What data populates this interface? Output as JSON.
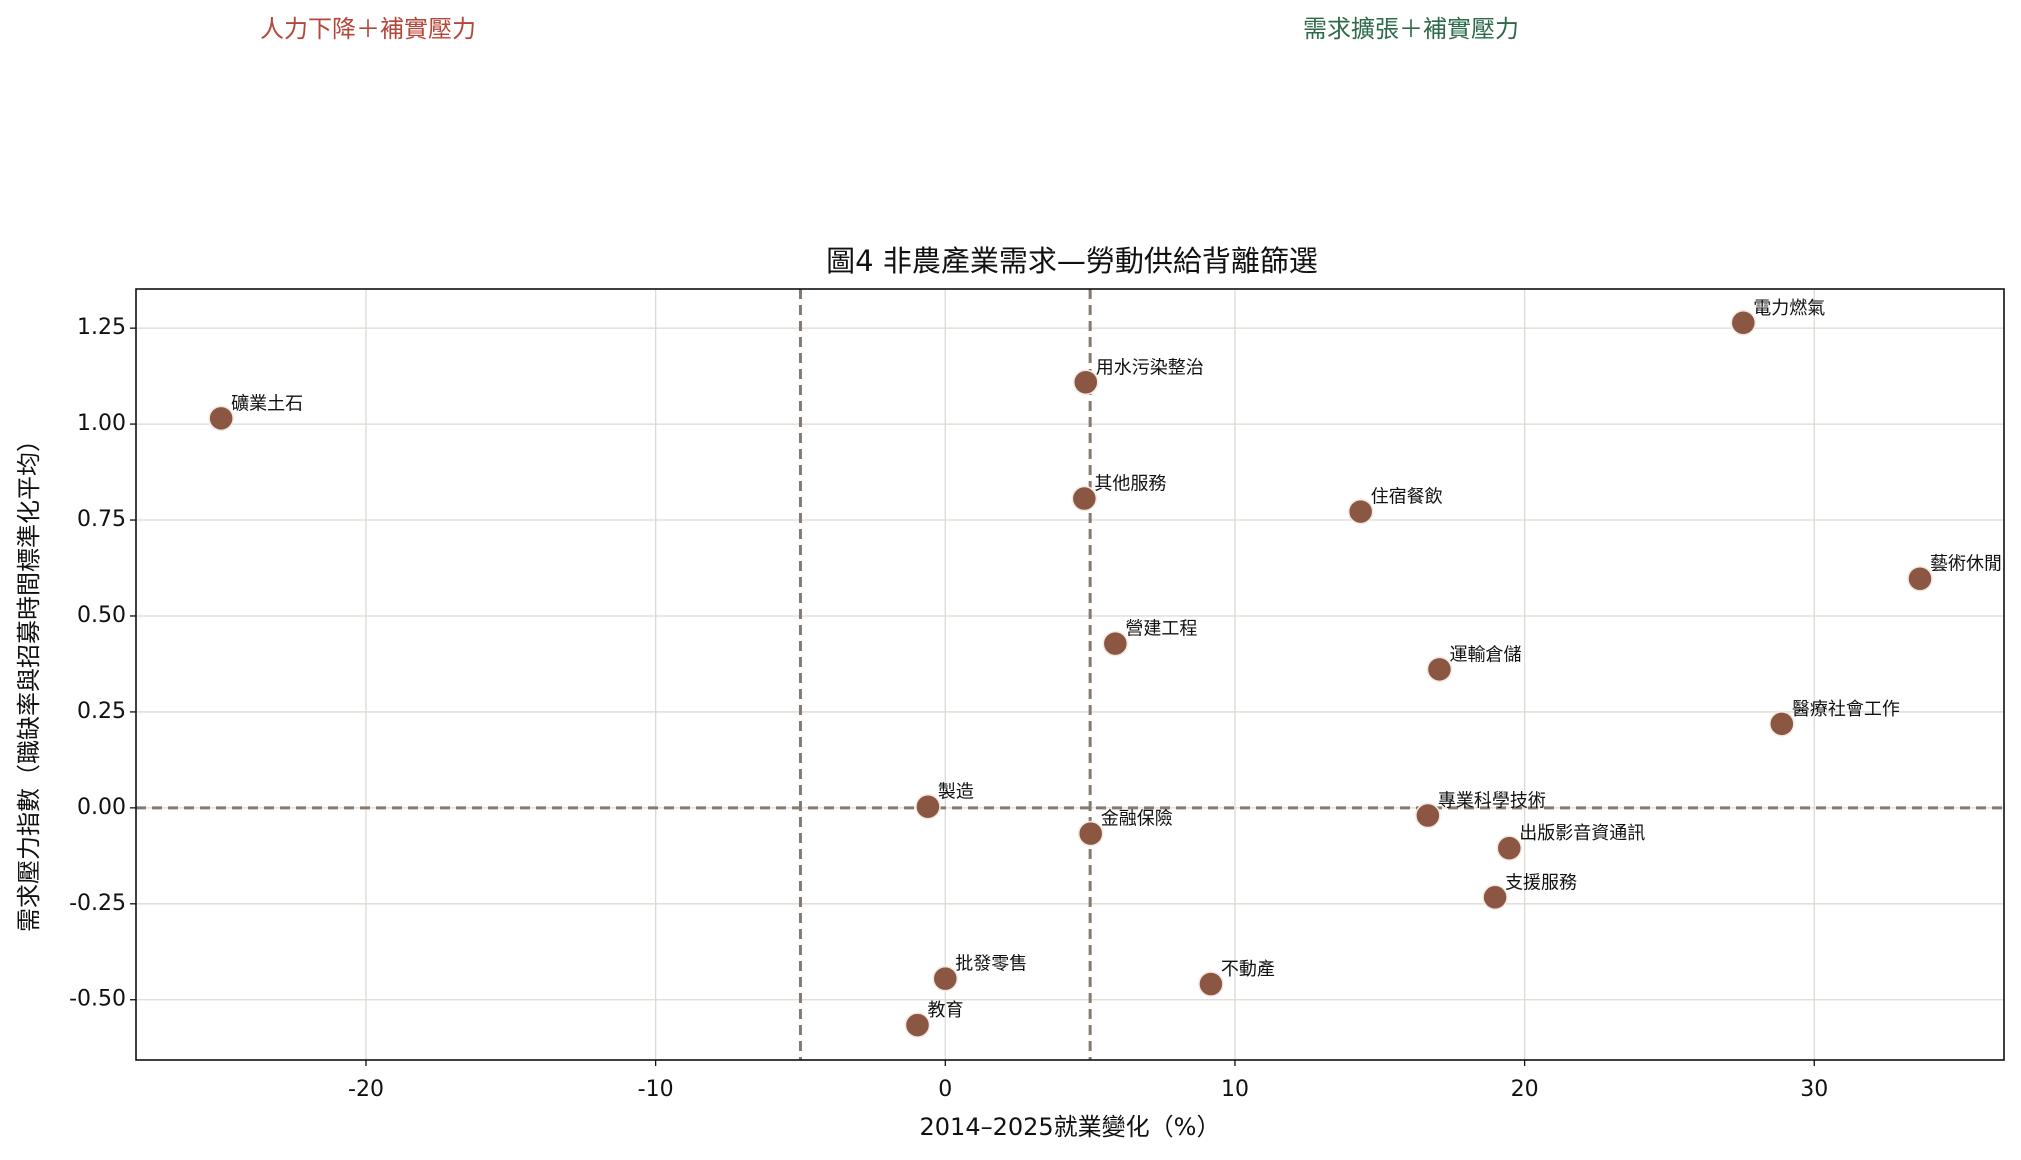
{
  "chart_data": {
    "type": "scatter",
    "title": "圖4 非農產業需求—勞動供給背離篩選",
    "xlabel": "2014–2025就業變化（%）",
    "ylabel": "需求壓力指數（職缺率與招募時間標準化平均）",
    "annotations": [
      {
        "text": "人力下降＋補實壓力",
        "color": "#b5473a"
      },
      {
        "text": "需求擴張＋補實壓力",
        "color": "#2e6b4a"
      }
    ],
    "series": [
      {
        "color": "#8b5742",
        "labels": [
          "礦業土石",
          "電力燃氣",
          "用水污染整治",
          "其他服務",
          "住宿餐飲",
          "藝術休閒",
          "營建工程",
          "運輸倉儲",
          "醫療社會工作",
          "製造",
          "專業科學技術",
          "金融保險",
          "出版影音資通訊",
          "支援服務",
          "批發零售",
          "不動產",
          "教育"
        ],
        "x": [
          -25.0,
          27.55,
          4.85,
          4.8,
          14.34,
          33.65,
          5.87,
          17.06,
          28.88,
          -0.6,
          16.66,
          5.02,
          19.47,
          18.98,
          0.0,
          9.17,
          -0.96
        ],
        "values": [
          1.015,
          1.264,
          1.109,
          0.806,
          0.772,
          0.597,
          0.428,
          0.361,
          0.219,
          0.003,
          -0.02,
          -0.067,
          -0.105,
          -0.233,
          -0.445,
          -0.459,
          -0.566
        ]
      }
    ],
    "vlines": [
      -5,
      5
    ],
    "hlines": [
      0
    ],
    "refline_color": "#857a70",
    "xlim": [
      -27.94,
      36.55
    ],
    "ylim": [
      -0.657,
      1.352
    ],
    "xticks": [
      -20,
      -10,
      0,
      10,
      20,
      30
    ],
    "yticks": [
      {
        "value": -0.5,
        "label": "-0.50"
      },
      -0.25,
      {
        "value": 0,
        "label": "0.00"
      },
      0.25,
      {
        "value": 0.5,
        "label": "0.50"
      },
      0.75,
      {
        "value": 1.0,
        "label": "1.00"
      },
      1.25
    ],
    "grid": true
  }
}
